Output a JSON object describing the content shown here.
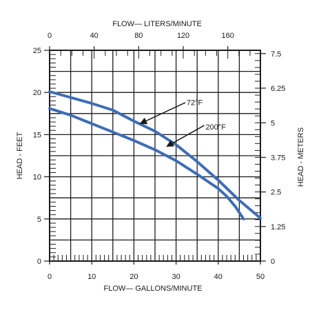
{
  "chart_data": {
    "type": "line",
    "title": "",
    "axes": {
      "x_bottom": {
        "label": "FLOW— GALLONS/MINUTE",
        "range": [
          0,
          50
        ],
        "ticks": [
          "0",
          "10",
          "20",
          "30",
          "40",
          "50"
        ]
      },
      "x_top": {
        "label": "FLOW— LITERS/MINUTE",
        "ticks": [
          {
            "label": "0",
            "at_gpm": 0
          },
          {
            "label": "40",
            "at_gpm": 10.57
          },
          {
            "label": "80",
            "at_gpm": 21.13
          },
          {
            "label": "120",
            "at_gpm": 31.7
          },
          {
            "label": "160",
            "at_gpm": 42.27
          }
        ]
      },
      "y_left": {
        "label": "HEAD - FEET",
        "range": [
          0,
          25
        ],
        "ticks": [
          "0",
          "5",
          "10",
          "15",
          "20",
          "25"
        ]
      },
      "y_right": {
        "label": "HEAD - METERS",
        "ticks": [
          {
            "label": "0",
            "at_feet": 0
          },
          {
            "label": "1.25",
            "at_feet": 4.1
          },
          {
            "label": "2.5",
            "at_feet": 8.2
          },
          {
            "label": "3.75",
            "at_feet": 12.3
          },
          {
            "label": "5",
            "at_feet": 16.4
          },
          {
            "label": "6.25",
            "at_feet": 20.51
          },
          {
            "label": "7.5",
            "at_feet": 24.61
          }
        ]
      }
    },
    "grid": true,
    "series": [
      {
        "name": "72°F",
        "color": "#3e6db5",
        "x": [
          0,
          5,
          10,
          15,
          20,
          25,
          30,
          35,
          40,
          45,
          50
        ],
        "y": [
          20.1,
          19.4,
          18.7,
          17.9,
          16.6,
          15.4,
          13.8,
          11.8,
          9.6,
          7.2,
          5.1
        ]
      },
      {
        "name": "200°F",
        "color": "#3e6db5",
        "x": [
          0,
          5,
          10,
          15,
          20,
          25,
          30,
          35,
          40,
          42,
          44,
          46
        ],
        "y": [
          18.1,
          17.3,
          16.3,
          15.3,
          14.3,
          13.2,
          11.9,
          10.3,
          8.6,
          7.7,
          6.5,
          5.0
        ]
      }
    ],
    "annotations": [
      {
        "text": "72°F",
        "series": "72°F"
      },
      {
        "text": "200°F",
        "series": "200°F"
      }
    ]
  }
}
